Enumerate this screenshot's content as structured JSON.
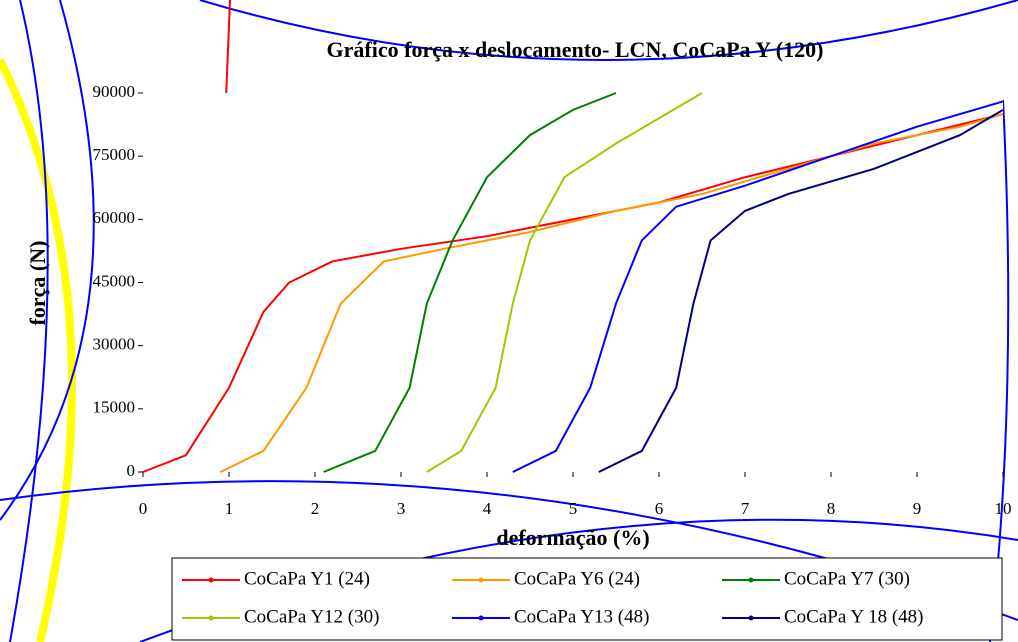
{
  "chart_data": {
    "type": "line",
    "title": "Gráfico força x deslocamento- LCN, CoCaPa Y (120)",
    "x_label": "deformação (%)",
    "y_label": "força (N)",
    "xlim": [
      0,
      10
    ],
    "xticks": [
      0,
      1,
      2,
      3,
      4,
      5,
      6,
      7,
      8,
      9,
      10
    ],
    "ylim": [
      0,
      90000
    ],
    "yticks": [
      0,
      15000,
      30000,
      45000,
      60000,
      75000,
      90000
    ],
    "series": [
      {
        "name": "CoCaPa Y1 (24)",
        "color": "#ff0000",
        "x": [
          0,
          0.5,
          1,
          1.4,
          1.7,
          2.2,
          3,
          4,
          5,
          6,
          7,
          8,
          9,
          10
        ],
        "values": [
          0,
          4000,
          20000,
          38000,
          45000,
          50000,
          53000,
          56000,
          60000,
          64000,
          70000,
          75000,
          80000,
          85000
        ]
      },
      {
        "name": "CoCaPa Y6 (24)",
        "color": "#ff9900",
        "x": [
          0.9,
          1.4,
          1.9,
          2.3,
          2.8,
          3.5,
          4.5,
          5.5,
          6.5,
          7.5,
          8.5,
          9.5,
          10
        ],
        "values": [
          0,
          5000,
          20000,
          40000,
          50000,
          53000,
          57000,
          62000,
          66000,
          72000,
          78000,
          82000,
          85000
        ]
      },
      {
        "name": "CoCaPa Y7 (30)",
        "color": "#008000",
        "x": [
          2.1,
          2.7,
          3.1,
          3.3,
          3.6,
          4.0,
          4.5,
          5.0,
          5.5
        ],
        "values": [
          0,
          5000,
          20000,
          40000,
          55000,
          70000,
          80000,
          86000,
          90000
        ]
      },
      {
        "name": "CoCaPa Y12 (30)",
        "color": "#99cc00",
        "x": [
          3.3,
          3.7,
          4.1,
          4.3,
          4.5,
          4.9,
          5.5,
          6.0,
          6.5
        ],
        "values": [
          0,
          5000,
          20000,
          40000,
          55000,
          70000,
          78000,
          84000,
          90000
        ]
      },
      {
        "name": "CoCaPa Y13 (48)",
        "color": "#0000ff",
        "x": [
          4.3,
          4.8,
          5.2,
          5.5,
          5.8,
          6.2,
          7,
          8,
          9,
          10
        ],
        "values": [
          0,
          5000,
          20000,
          40000,
          55000,
          63000,
          68000,
          75000,
          82000,
          88000
        ]
      },
      {
        "name": "CoCaPa Y 18 (48)",
        "color": "#000080",
        "x": [
          5.3,
          5.8,
          6.2,
          6.4,
          6.6,
          7,
          7.5,
          8.5,
          9.5,
          10
        ],
        "values": [
          0,
          5000,
          20000,
          40000,
          55000,
          62000,
          66000,
          72000,
          80000,
          86000
        ]
      }
    ]
  }
}
